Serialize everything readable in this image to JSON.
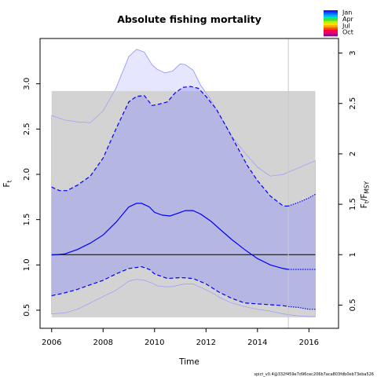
{
  "chart_data": {
    "type": "line",
    "title": "Absolute fishing mortality",
    "xlabel": "Time",
    "ylabel": "F_t",
    "ylabel_right": "F_t/F_MSY",
    "footer": "spict_v0.4@332f459e7d96cec206b7aca803fdb0eb73eba526",
    "xlim": [
      2005.55,
      2017.15
    ],
    "ylim": [
      0.3,
      3.5
    ],
    "x_ticks": [
      2006,
      2008,
      2010,
      2012,
      2014,
      2016
    ],
    "x_tick_labels": [
      "2006",
      "2008",
      "2010",
      "2012",
      "2014",
      "2016"
    ],
    "y_ticks": [
      0.5,
      1.0,
      1.5,
      2.0,
      2.5,
      3.0
    ],
    "y_tick_labels": [
      "0.5",
      "1.0",
      "1.5",
      "2.0",
      "2.5",
      "3.0"
    ],
    "fmsy": 1.113,
    "y2_ticks": [
      0.5,
      1,
      1.5,
      2,
      2.5,
      3
    ],
    "y2_tick_labels": [
      "0.5",
      "1",
      "1.5",
      "2",
      "2.5",
      "3"
    ],
    "fmsy_ci": [
      0.42,
      2.92
    ],
    "fmsy_ci_x": [
      2006,
      2016.25
    ],
    "last_obs_year": 2015.2,
    "legend": {
      "placement": "top-right, outside plot",
      "labels": [
        "Jan",
        "Apr",
        "Jul",
        "Oct"
      ]
    },
    "colors": {
      "estimate": "#0000ff",
      "ci_fill": "#8080ff",
      "fmsy_band": "#d3d3d3",
      "fmsy_line": "#000000",
      "seasonal_fill": "#e6e6ff",
      "seasonal_edge": "#9a9aff"
    },
    "series": [
      {
        "name": "F_t",
        "x": [
          2006,
          2006.5,
          2007,
          2007.5,
          2008,
          2008.5,
          2009,
          2009.3,
          2009.5,
          2009.8,
          2010,
          2010.3,
          2010.6,
          2010.9,
          2011.2,
          2011.5,
          2011.8,
          2012.2,
          2012.6,
          2013,
          2013.5,
          2014,
          2014.5,
          2015,
          2015.2
        ],
        "values": [
          1.11,
          1.12,
          1.17,
          1.24,
          1.33,
          1.47,
          1.64,
          1.68,
          1.68,
          1.64,
          1.58,
          1.55,
          1.54,
          1.57,
          1.6,
          1.6,
          1.56,
          1.48,
          1.38,
          1.28,
          1.17,
          1.07,
          1.0,
          0.96,
          0.95
        ]
      },
      {
        "name": "F_t forecast",
        "x": [
          2015.2,
          2015.6,
          2016,
          2016.25
        ],
        "values": [
          0.95,
          0.95,
          0.95,
          0.95
        ]
      },
      {
        "name": "F_t upper CI",
        "x": [
          2006,
          2006.3,
          2006.6,
          2007,
          2007.5,
          2008,
          2008.5,
          2009,
          2009.3,
          2009.6,
          2009.9,
          2010.1,
          2010.5,
          2010.8,
          2011.1,
          2011.4,
          2011.7,
          2012,
          2012.4,
          2012.8,
          2013.2,
          2013.6,
          2014,
          2014.5,
          2015,
          2015.2
        ],
        "values": [
          1.86,
          1.82,
          1.82,
          1.88,
          1.98,
          2.18,
          2.5,
          2.8,
          2.86,
          2.87,
          2.76,
          2.77,
          2.8,
          2.9,
          2.96,
          2.97,
          2.95,
          2.86,
          2.72,
          2.52,
          2.31,
          2.1,
          1.93,
          1.76,
          1.65,
          1.65
        ]
      },
      {
        "name": "F_t upper CI forecast",
        "x": [
          2015.2,
          2015.6,
          2016,
          2016.25
        ],
        "values": [
          1.65,
          1.69,
          1.74,
          1.78
        ]
      },
      {
        "name": "F_t lower CI",
        "x": [
          2006,
          2006.5,
          2007,
          2007.5,
          2008,
          2008.5,
          2009,
          2009.5,
          2009.8,
          2010,
          2010.5,
          2011,
          2011.5,
          2012,
          2012.5,
          2013,
          2013.5,
          2014,
          2014.5,
          2015,
          2015.2
        ],
        "values": [
          0.66,
          0.69,
          0.73,
          0.78,
          0.83,
          0.9,
          0.96,
          0.98,
          0.95,
          0.9,
          0.85,
          0.86,
          0.85,
          0.79,
          0.7,
          0.63,
          0.58,
          0.57,
          0.56,
          0.55,
          0.54
        ]
      },
      {
        "name": "F_t lower CI forecast",
        "x": [
          2015.2,
          2015.6,
          2016,
          2016.25
        ],
        "values": [
          0.54,
          0.53,
          0.51,
          0.51
        ]
      }
    ],
    "seasonal_band": {
      "x": [
        2006,
        2006.5,
        2007,
        2007.5,
        2008,
        2008.5,
        2009,
        2009.3,
        2009.6,
        2009.9,
        2010.1,
        2010.4,
        2010.7,
        2011,
        2011.2,
        2011.5,
        2011.8,
        2012.2,
        2012.6,
        2013,
        2013.5,
        2014,
        2014.5,
        2015,
        2015.5,
        2016,
        2016.25
      ],
      "upper": [
        2.65,
        2.6,
        2.58,
        2.57,
        2.7,
        2.95,
        3.3,
        3.38,
        3.35,
        3.21,
        3.16,
        3.12,
        3.14,
        3.22,
        3.21,
        3.15,
        2.98,
        2.82,
        2.62,
        2.42,
        2.24,
        2.08,
        1.98,
        2.0,
        2.06,
        2.12,
        2.15
      ],
      "lower": [
        0.46,
        0.47,
        0.51,
        0.58,
        0.65,
        0.72,
        0.82,
        0.84,
        0.83,
        0.8,
        0.77,
        0.76,
        0.76,
        0.78,
        0.79,
        0.79,
        0.75,
        0.7,
        0.63,
        0.58,
        0.54,
        0.51,
        0.49,
        0.46,
        0.44,
        0.43,
        0.43
      ]
    }
  }
}
